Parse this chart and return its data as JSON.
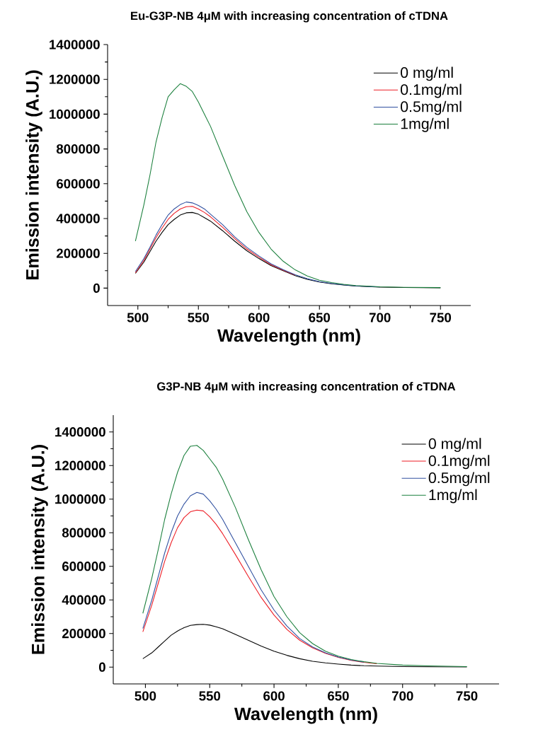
{
  "chart_data": [
    {
      "type": "line",
      "title": "Eu-G3P-NB 4μM with increasing concentration of cTDNA",
      "xlabel": "Wavelength (nm)",
      "ylabel": "Emission intensity (A.U.)",
      "legend": "top right",
      "xlim": [
        475,
        775
      ],
      "ylim": [
        -100000,
        1400000
      ],
      "xticks": [
        500,
        550,
        600,
        650,
        700,
        750
      ],
      "yticks": [
        0,
        200000,
        400000,
        600000,
        800000,
        1000000,
        1200000,
        1400000
      ],
      "x": [
        498,
        505,
        510,
        515,
        520,
        525,
        530,
        535,
        540,
        545,
        550,
        555,
        560,
        570,
        580,
        590,
        600,
        610,
        620,
        630,
        640,
        650,
        660,
        670,
        680,
        700,
        720,
        750
      ],
      "series": [
        {
          "name": "0 mg/ml",
          "color": "#000000",
          "values": [
            85000,
            150000,
            210000,
            270000,
            320000,
            365000,
            395000,
            420000,
            433000,
            435000,
            425000,
            405000,
            385000,
            330000,
            270000,
            215000,
            170000,
            130000,
            100000,
            72000,
            50000,
            35000,
            25000,
            18000,
            12000,
            6000,
            4000,
            2000
          ]
        },
        {
          "name": "0.1mg/ml",
          "color": "#ed1c24",
          "values": [
            88000,
            160000,
            225000,
            290000,
            345000,
            395000,
            430000,
            455000,
            468000,
            470000,
            455000,
            435000,
            410000,
            350000,
            285000,
            225000,
            178000,
            135000,
            103000,
            75000,
            null,
            null,
            null,
            null,
            null,
            null,
            null,
            null
          ]
        },
        {
          "name": "0.5mg/ml",
          "color": "#3050a0",
          "values": [
            95000,
            170000,
            235000,
            305000,
            365000,
            420000,
            455000,
            480000,
            495000,
            490000,
            475000,
            455000,
            425000,
            365000,
            295000,
            235000,
            185000,
            140000,
            106000,
            77000,
            54000,
            37000,
            27000,
            19000,
            13000,
            7000,
            null,
            null
          ]
        },
        {
          "name": "1mg/ml",
          "color": "#1a7f3c",
          "values": [
            270000,
            480000,
            650000,
            840000,
            980000,
            1100000,
            1140000,
            1175000,
            1160000,
            1130000,
            1070000,
            1000000,
            930000,
            760000,
            590000,
            440000,
            320000,
            225000,
            155000,
            105000,
            70000,
            45000,
            32000,
            22000,
            15000,
            8000,
            5000,
            3000
          ]
        }
      ]
    },
    {
      "type": "line",
      "title": "G3P-NB 4μM with increasing concentration of cTDNA",
      "xlabel": "Wavelength (nm)",
      "ylabel": "Emission intensity (A.U.)",
      "legend": "top right",
      "xlim": [
        475,
        775
      ],
      "ylim": [
        -100000,
        1500000
      ],
      "xticks": [
        500,
        550,
        600,
        650,
        700,
        750
      ],
      "yticks": [
        0,
        200000,
        400000,
        600000,
        800000,
        1000000,
        1200000,
        1400000
      ],
      "x": [
        498,
        505,
        510,
        515,
        520,
        525,
        530,
        535,
        540,
        545,
        550,
        555,
        560,
        570,
        580,
        590,
        600,
        610,
        620,
        630,
        640,
        650,
        660,
        670,
        680,
        700,
        720,
        750
      ],
      "series": [
        {
          "name": "0 mg/ml",
          "color": "#000000",
          "values": [
            50000,
            85000,
            120000,
            155000,
            190000,
            215000,
            235000,
            248000,
            253000,
            255000,
            250000,
            240000,
            228000,
            195000,
            160000,
            125000,
            95000,
            70000,
            50000,
            35000,
            25000,
            18000,
            12000,
            8000,
            6000,
            3000,
            2000,
            1000
          ]
        },
        {
          "name": "0.1mg/ml",
          "color": "#ed1c24",
          "values": [
            210000,
            370000,
            500000,
            630000,
            740000,
            830000,
            890000,
            925000,
            935000,
            930000,
            895000,
            850000,
            795000,
            670000,
            540000,
            415000,
            310000,
            225000,
            160000,
            115000,
            82000,
            58000,
            40000,
            28000,
            20000,
            null,
            null,
            null
          ]
        },
        {
          "name": "0.5mg/ml",
          "color": "#3050a0",
          "values": [
            230000,
            400000,
            540000,
            680000,
            800000,
            900000,
            970000,
            1020000,
            1040000,
            1030000,
            990000,
            940000,
            880000,
            740000,
            600000,
            460000,
            340000,
            245000,
            170000,
            120000,
            85000,
            60000,
            42000,
            30000,
            null,
            null,
            null,
            null
          ]
        },
        {
          "name": "1mg/ml",
          "color": "#1a7f3c",
          "values": [
            320000,
            530000,
            700000,
            880000,
            1030000,
            1160000,
            1260000,
            1315000,
            1320000,
            1290000,
            1240000,
            1190000,
            1120000,
            950000,
            760000,
            580000,
            420000,
            300000,
            205000,
            140000,
            95000,
            65000,
            45000,
            32000,
            22000,
            12000,
            7000,
            3000
          ]
        }
      ]
    }
  ]
}
